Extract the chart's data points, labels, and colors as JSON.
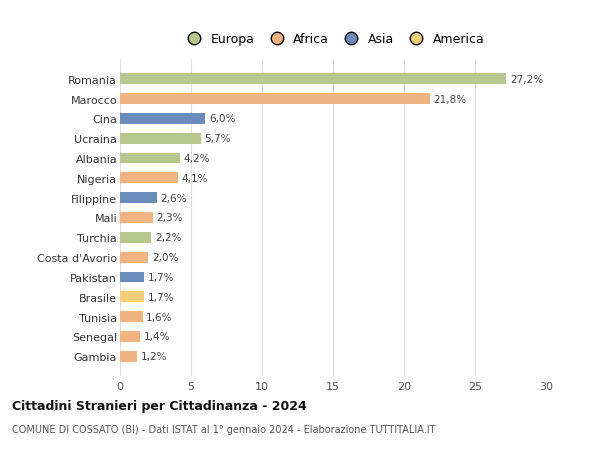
{
  "countries": [
    "Romania",
    "Marocco",
    "Cina",
    "Ucraina",
    "Albania",
    "Nigeria",
    "Filippine",
    "Mali",
    "Turchia",
    "Costa d'Avorio",
    "Pakistan",
    "Brasile",
    "Tunisia",
    "Senegal",
    "Gambia"
  ],
  "values": [
    27.2,
    21.8,
    6.0,
    5.7,
    4.2,
    4.1,
    2.6,
    2.3,
    2.2,
    2.0,
    1.7,
    1.7,
    1.6,
    1.4,
    1.2
  ],
  "labels": [
    "27,2%",
    "21,8%",
    "6,0%",
    "5,7%",
    "4,2%",
    "4,1%",
    "2,6%",
    "2,3%",
    "2,2%",
    "2,0%",
    "1,7%",
    "1,7%",
    "1,6%",
    "1,4%",
    "1,2%"
  ],
  "continents": [
    "Europa",
    "Africa",
    "Asia",
    "Europa",
    "Europa",
    "Africa",
    "Asia",
    "Africa",
    "Europa",
    "Africa",
    "Asia",
    "America",
    "Africa",
    "Africa",
    "Africa"
  ],
  "continent_colors": {
    "Europa": "#b5c98e",
    "Africa": "#f0b482",
    "Asia": "#6b8cba",
    "America": "#f5d07a"
  },
  "legend_order": [
    "Europa",
    "Africa",
    "Asia",
    "America"
  ],
  "title": "Cittadini Stranieri per Cittadinanza - 2024",
  "subtitle": "COMUNE DI COSSATO (BI) - Dati ISTAT al 1° gennaio 2024 - Elaborazione TUTTITALIA.IT",
  "xlim": [
    0,
    30
  ],
  "xticks": [
    0,
    5,
    10,
    15,
    20,
    25,
    30
  ],
  "background_color": "#ffffff",
  "grid_color": "#e0e0e0"
}
